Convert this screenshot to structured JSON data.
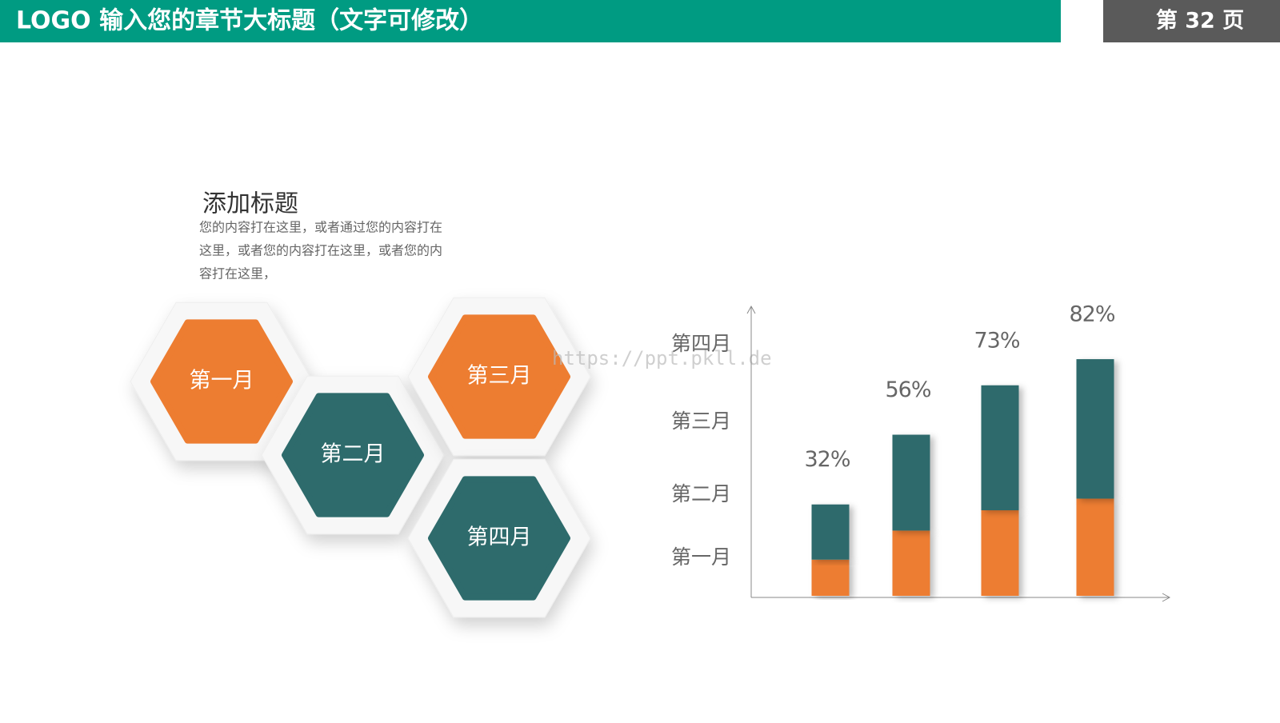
{
  "header": {
    "title": "LOGO  输入您的章节大标题（文字可修改）",
    "page": "第 32 页"
  },
  "text_block": {
    "title": "添加标题",
    "lines": [
      "您的内容打在这里，或者通过您的内容打在",
      "这里，或者您的内容打在这里，或者您的内",
      "容打在这里，"
    ]
  },
  "hexagons": [
    {
      "label": "第一月",
      "color": "#ed7d31"
    },
    {
      "label": "第二月",
      "color": "#2e6b6c"
    },
    {
      "label": "第三月",
      "color": "#ed7d31"
    },
    {
      "label": "第四月",
      "color": "#2e6b6c"
    }
  ],
  "watermark": "https://ppt.pkll.de",
  "chart_data": {
    "type": "bar",
    "stacked": true,
    "y_categories": [
      "第一月",
      "第二月",
      "第三月",
      "第四月"
    ],
    "values": [
      32,
      56,
      73,
      82
    ],
    "value_labels": [
      "32%",
      "56%",
      "73%",
      "82%"
    ],
    "series": [
      {
        "color": "#ed7d31",
        "values": [
          13,
          23,
          30,
          34
        ]
      },
      {
        "color": "#2e6b6c",
        "values": [
          19,
          33,
          43,
          48
        ]
      }
    ],
    "ylim": [
      0,
      90
    ]
  }
}
